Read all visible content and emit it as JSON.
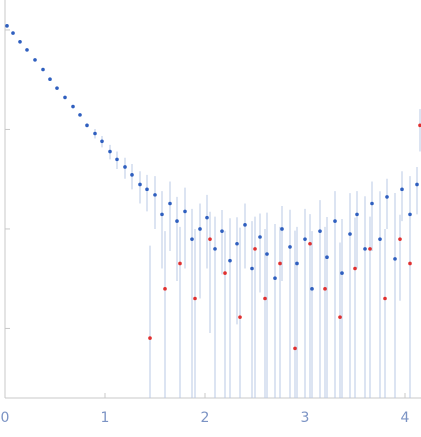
{
  "chart_data": {
    "type": "scatter",
    "log_y": true,
    "xlim": [
      0,
      4.15
    ],
    "xticks": [
      0,
      1,
      2,
      3,
      4
    ],
    "ylim": [
      0.0002,
      2
    ],
    "yticks": [
      0.001,
      0.01,
      0.1,
      1
    ],
    "error_color": "#b9c9e6",
    "series": [
      {
        "color": "#2f5fbf",
        "x": [
          0.02,
          0.08,
          0.15,
          0.22,
          0.3,
          0.38,
          0.45,
          0.52,
          0.6,
          0.68,
          0.75,
          0.82,
          0.9,
          0.97,
          1.05,
          1.12,
          1.2,
          1.27,
          1.35,
          1.42,
          1.5,
          1.57,
          1.65,
          1.72,
          1.8,
          1.87,
          1.95,
          2.02,
          2.1,
          2.17,
          2.25,
          2.32,
          2.4,
          2.47,
          2.55,
          2.62,
          2.7,
          2.77,
          2.85,
          2.92,
          3.0,
          3.07,
          3.15,
          3.22,
          3.3,
          3.37,
          3.45,
          3.52,
          3.6,
          3.67,
          3.75,
          3.82,
          3.9,
          3.97,
          4.05,
          4.12
        ],
        "values": [
          1.1,
          0.93,
          0.76,
          0.63,
          0.5,
          0.4,
          0.32,
          0.26,
          0.21,
          0.17,
          0.14,
          0.11,
          0.091,
          0.076,
          0.06,
          0.05,
          0.042,
          0.035,
          0.028,
          0.025,
          0.022,
          0.014,
          0.018,
          0.012,
          0.015,
          0.0079,
          0.01,
          0.013,
          0.0063,
          0.0095,
          0.0048,
          0.0071,
          0.011,
          0.004,
          0.0083,
          0.0056,
          0.0032,
          0.01,
          0.0066,
          0.0045,
          0.0079,
          0.0025,
          0.0095,
          0.0052,
          0.012,
          0.0036,
          0.0089,
          0.014,
          0.0063,
          0.018,
          0.0079,
          0.021,
          0.005,
          0.025,
          0.014,
          0.028
        ],
        "errors": [
          0.01,
          0.01,
          0.01,
          0.01,
          0.01,
          0.008,
          0.006,
          0.005,
          0.005,
          0.005,
          0.005,
          0.005,
          0.01,
          0.01,
          0.01,
          0.01,
          0.01,
          0.01,
          0.01,
          0.01,
          0.012,
          0.01,
          0.012,
          0.009,
          0.011,
          0.008,
          0.008,
          0.009,
          0.007,
          0.006,
          0.008,
          0.006,
          0.007,
          0.008,
          0.006,
          0.009,
          0.008,
          0.007,
          0.009,
          0.006,
          0.008,
          0.007,
          0.01,
          0.008,
          0.012,
          0.009,
          0.014,
          0.01,
          0.015,
          0.012,
          0.016,
          0.011,
          0.018,
          0.013,
          0.02,
          0.014
        ]
      },
      {
        "color": "#e0302f",
        "x": [
          1.45,
          1.6,
          1.75,
          1.9,
          2.05,
          2.2,
          2.35,
          2.5,
          2.6,
          2.75,
          2.9,
          3.05,
          3.2,
          3.35,
          3.5,
          3.65,
          3.8,
          3.95,
          4.05,
          4.15
        ],
        "values": [
          0.0008,
          0.0025,
          0.0045,
          0.002,
          0.0079,
          0.0036,
          0.0013,
          0.0063,
          0.002,
          0.0045,
          0.00063,
          0.0071,
          0.0025,
          0.0013,
          0.004,
          0.0063,
          0.002,
          0.0079,
          0.0045,
          0.11
        ],
        "errors": [
          0.006,
          0.007,
          0.006,
          0.008,
          0.007,
          0.006,
          0.009,
          0.007,
          0.008,
          0.006,
          0.009,
          0.007,
          0.008,
          0.006,
          0.009,
          0.007,
          0.008,
          0.006,
          0.009,
          0.05
        ]
      }
    ]
  }
}
